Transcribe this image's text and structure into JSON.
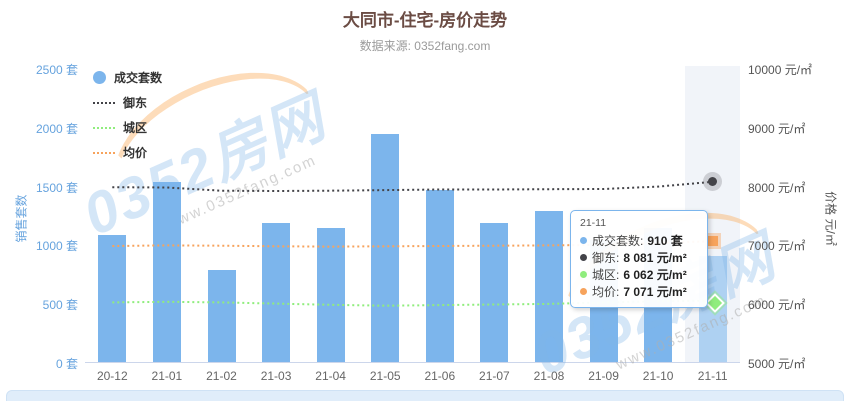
{
  "title": {
    "text": "大同市-住宅-房价走势"
  },
  "subtitle": {
    "text": "数据来源: 0352fang.com"
  },
  "watermark": {
    "brand": "0352房网",
    "url": "www.0352fang.com"
  },
  "legend": {
    "items": [
      {
        "label": "成交套数"
      },
      {
        "label": "御东"
      },
      {
        "label": "城区"
      },
      {
        "label": "均价"
      }
    ]
  },
  "axes": {
    "left": {
      "title": "销售套数",
      "ticks": [
        "0 套",
        "500 套",
        "1000 套",
        "1500 套",
        "2000 套",
        "2500 套"
      ]
    },
    "right": {
      "title": "价格 元/㎡",
      "ticks": [
        "5000 元/㎡",
        "6000 元/㎡",
        "7000 元/㎡",
        "8000 元/㎡",
        "9000 元/㎡",
        "10000 元/㎡"
      ]
    }
  },
  "tooltip": {
    "header": "21-11",
    "rows": [
      {
        "label": "成交套数:",
        "value": "910 套",
        "color": "#7cb5ec"
      },
      {
        "label": "御东:",
        "value": "8 081 元/m²",
        "color": "#434348"
      },
      {
        "label": "城区:",
        "value": "6 062 元/m²",
        "color": "#90ed7d"
      },
      {
        "label": "均价:",
        "value": "7 071 元/m²",
        "color": "#f7a35c"
      }
    ]
  },
  "chart_data": {
    "type": "bar",
    "title": "大同市-住宅-房价走势",
    "subtitle": "数据来源: 0352fang.com",
    "categories": [
      "20-12",
      "21-01",
      "21-02",
      "21-03",
      "21-04",
      "21-05",
      "21-06",
      "21-07",
      "21-08",
      "21-09",
      "21-10",
      "21-11"
    ],
    "series": [
      {
        "name": "成交套数",
        "type": "bar",
        "yaxis": "left",
        "color": "#7cb5ec",
        "highlight_color": "#a6cdf1",
        "marker": "none",
        "values": [
          1090,
          1540,
          790,
          1190,
          1150,
          1950,
          1470,
          1190,
          1290,
          1050,
          1150,
          910
        ]
      },
      {
        "name": "御东",
        "type": "line",
        "yaxis": "right",
        "color": "#434348",
        "dash": "dot",
        "marker": "circle",
        "values": [
          7990,
          7985,
          7930,
          7925,
          7930,
          7940,
          7950,
          7950,
          7955,
          7960,
          8000,
          8081
        ]
      },
      {
        "name": "城区",
        "type": "line",
        "yaxis": "right",
        "color": "#90ed7d",
        "dash": "dot",
        "marker": "diamond",
        "values": [
          6030,
          6040,
          6030,
          6010,
          5990,
          5975,
          5985,
          5995,
          6005,
          6030,
          6050,
          6062
        ]
      },
      {
        "name": "均价",
        "type": "line",
        "yaxis": "right",
        "color": "#f7a35c",
        "dash": "dot",
        "marker": "square",
        "values": [
          6990,
          7000,
          6995,
          6985,
          6980,
          6985,
          6990,
          6995,
          7000,
          7010,
          7040,
          7071
        ]
      }
    ],
    "ylim_left": [
      0,
      2500
    ],
    "ylim_right": [
      5000,
      10000
    ],
    "xlabel": "",
    "ylabel_left": "销售套数",
    "ylabel_right": "价格 元/㎡",
    "grid": false,
    "legend_position": "top-left",
    "highlighted_category": "21-11",
    "tooltip_point": {
      "category": "21-11",
      "成交套数": "910 套",
      "御东": "8 081 元/m²",
      "城区": "6 062 元/m²",
      "均价": "7 071 元/m²"
    }
  }
}
